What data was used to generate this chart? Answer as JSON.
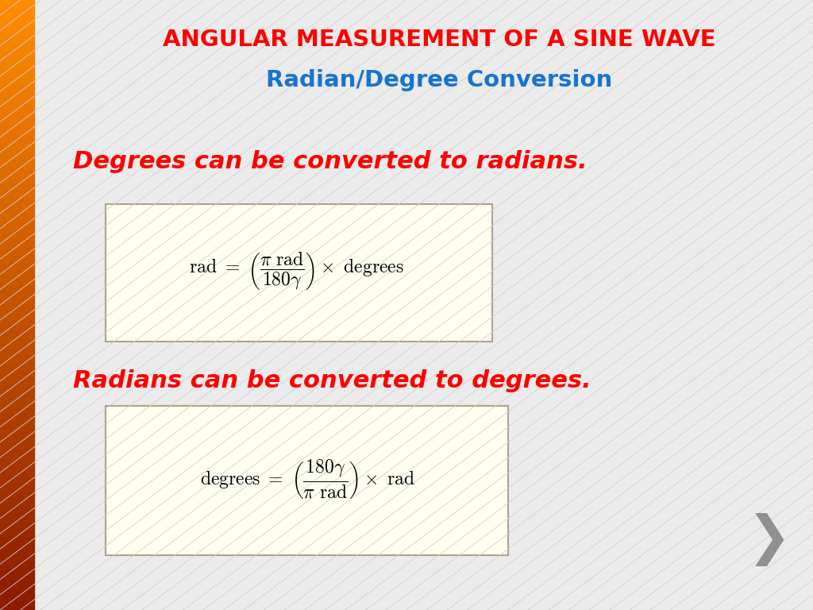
{
  "title_line1": "ANGULAR MEASUREMENT OF A SINE WAVE",
  "title_line2": "Radian/Degree Conversion",
  "title_line1_color": "#FF0000",
  "title_line2_color": "#1874CD",
  "subtitle1": "Degrees can be converted to radians.",
  "subtitle2": "Radians can be converted to degrees.",
  "subtitle_color": "#FF0000",
  "box_facecolor": "#FFFFF0",
  "box_edgecolor": "#B0A090",
  "background_color": "#EBEBEB",
  "left_bar_color_top": "#FF8C00",
  "left_bar_color_bottom": "#8B1A00",
  "chevron_color": "#909090",
  "formula_color": "#000000"
}
